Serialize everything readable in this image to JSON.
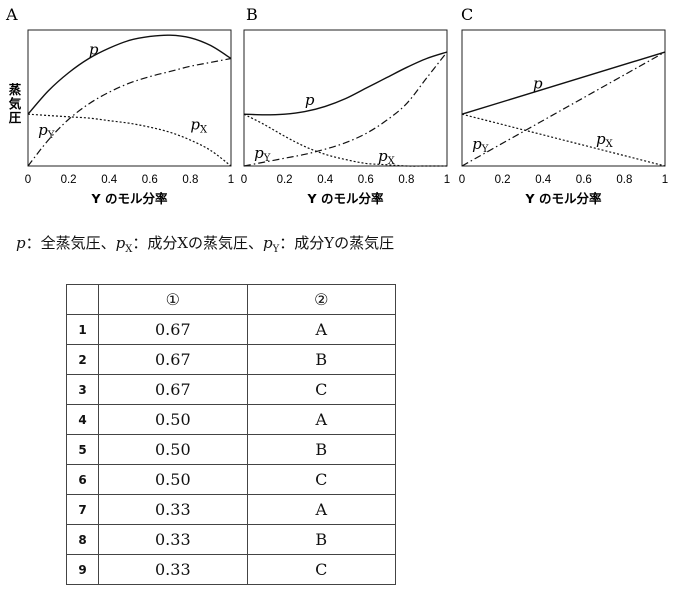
{
  "chart_data": [
    {
      "type": "line",
      "panel_label": "A",
      "ylabel": "蒸気圧",
      "xlabel": "Y のモル分率",
      "xlim": [
        0,
        1
      ],
      "x_ticks": [
        "0",
        "0.2",
        "0.4",
        "0.6",
        "0.8",
        "1"
      ],
      "grid": false,
      "series": [
        {
          "name": "p",
          "style": "solid",
          "x": [
            0,
            0.1,
            0.2,
            0.3,
            0.4,
            0.5,
            0.6,
            0.7,
            0.8,
            0.9,
            1.0
          ],
          "y": [
            0.4,
            0.58,
            0.72,
            0.83,
            0.91,
            0.97,
            1.0,
            1.01,
            0.99,
            0.93,
            0.83
          ]
        },
        {
          "name": "pY",
          "style": "dashdot",
          "x": [
            0,
            0.1,
            0.2,
            0.3,
            0.4,
            0.5,
            0.6,
            0.7,
            0.8,
            0.9,
            1.0
          ],
          "y": [
            0.0,
            0.2,
            0.36,
            0.48,
            0.57,
            0.64,
            0.69,
            0.73,
            0.77,
            0.8,
            0.83
          ]
        },
        {
          "name": "pX",
          "style": "dotted",
          "x": [
            0,
            0.1,
            0.2,
            0.3,
            0.4,
            0.5,
            0.6,
            0.7,
            0.8,
            0.9,
            1.0
          ],
          "y": [
            0.4,
            0.39,
            0.38,
            0.37,
            0.35,
            0.33,
            0.3,
            0.26,
            0.2,
            0.12,
            0.0
          ]
        }
      ]
    },
    {
      "type": "line",
      "panel_label": "B",
      "xlabel": "Y のモル分率",
      "xlim": [
        0,
        1
      ],
      "x_ticks": [
        "0",
        "0.2",
        "0.4",
        "0.6",
        "0.8",
        "1"
      ],
      "grid": false,
      "series": [
        {
          "name": "p",
          "style": "solid",
          "x": [
            0,
            0.1,
            0.2,
            0.3,
            0.4,
            0.5,
            0.6,
            0.7,
            0.8,
            0.9,
            1.0
          ],
          "y": [
            0.4,
            0.395,
            0.4,
            0.42,
            0.46,
            0.52,
            0.6,
            0.68,
            0.76,
            0.83,
            0.88
          ]
        },
        {
          "name": "pY",
          "style": "dashdot",
          "x": [
            0,
            0.1,
            0.2,
            0.3,
            0.4,
            0.5,
            0.6,
            0.7,
            0.8,
            0.9,
            1.0
          ],
          "y": [
            0.0,
            0.03,
            0.06,
            0.09,
            0.13,
            0.18,
            0.25,
            0.35,
            0.48,
            0.68,
            0.88
          ]
        },
        {
          "name": "pX",
          "style": "dotted",
          "x": [
            0,
            0.1,
            0.2,
            0.3,
            0.4,
            0.5,
            0.6,
            0.7,
            0.8,
            0.9,
            1.0
          ],
          "y": [
            0.4,
            0.32,
            0.23,
            0.15,
            0.09,
            0.05,
            0.02,
            0.01,
            0.0,
            0.0,
            0.0
          ]
        }
      ]
    },
    {
      "type": "line",
      "panel_label": "C",
      "xlabel": "Y のモル分率",
      "xlim": [
        0,
        1
      ],
      "x_ticks": [
        "0",
        "0.2",
        "0.4",
        "0.6",
        "0.8",
        "1"
      ],
      "grid": false,
      "series": [
        {
          "name": "p",
          "style": "solid",
          "x": [
            0,
            1
          ],
          "y": [
            0.4,
            0.88
          ]
        },
        {
          "name": "pY",
          "style": "dashdot",
          "x": [
            0,
            1
          ],
          "y": [
            0.0,
            0.88
          ]
        },
        {
          "name": "pX",
          "style": "dotted",
          "x": [
            0,
            1
          ],
          "y": [
            0.4,
            0.0
          ]
        }
      ]
    }
  ],
  "legend_text": {
    "p_var": "p",
    "p_desc": "：全蒸気圧、",
    "px_var": "p",
    "px_sub": "X",
    "px_desc": "：成分Xの蒸気圧、",
    "py_var": "p",
    "py_sub": "Y",
    "py_desc": "：成分Yの蒸気圧"
  },
  "table": {
    "headers": [
      "",
      "①",
      "②"
    ],
    "rows": [
      [
        "1",
        "0.67",
        "A"
      ],
      [
        "2",
        "0.67",
        "B"
      ],
      [
        "3",
        "0.67",
        "C"
      ],
      [
        "4",
        "0.50",
        "A"
      ],
      [
        "5",
        "0.50",
        "B"
      ],
      [
        "6",
        "0.50",
        "C"
      ],
      [
        "7",
        "0.33",
        "A"
      ],
      [
        "8",
        "0.33",
        "B"
      ],
      [
        "9",
        "0.33",
        "C"
      ]
    ]
  }
}
